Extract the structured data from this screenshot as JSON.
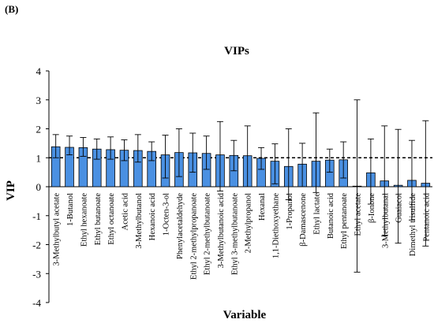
{
  "panel_label": "(B)",
  "chart_data": {
    "type": "bar",
    "title": "VIPs",
    "xlabel": "Variable",
    "ylabel": "VIP",
    "ylim": [
      -4,
      4
    ],
    "yticks": [
      -4,
      -3,
      -2,
      -1,
      0,
      1,
      2,
      3,
      4
    ],
    "threshold": 1,
    "bar_color": "#4a90e2",
    "categories": [
      "3-Methylbutyl acetate",
      "1-Butanol",
      "Ethyl hexanoate",
      "Ethyl butanoate",
      "Ethyl octanoate",
      "Acetic acid",
      "3-Methylbutanol",
      "Hexanoic acid",
      "1-Octen-3-ol",
      "Phenylacetaldehyde",
      "Ethyl 2-methylpropanoate",
      "Ethyl 2-methylbutanoate",
      "3-Methylbutanoic acid",
      "Ethyl 3-methylbutanoate",
      "2-Methylpropanol",
      "Hexanal",
      "1,1-Diethoxyethane",
      "1-Propanol",
      "β-Damascenone",
      "Ethyl lactate",
      "Butanoic acid",
      "Ethyl pentanoate",
      "Ethyl acetate",
      "β-Ionone",
      "3-Methylbutanal",
      "Guaiacol",
      "Dimethyl trisulfide",
      "Pentanoic acid"
    ],
    "values": [
      1.38,
      1.36,
      1.35,
      1.3,
      1.28,
      1.26,
      1.25,
      1.22,
      1.1,
      1.18,
      1.17,
      1.15,
      1.1,
      1.08,
      1.07,
      0.98,
      0.88,
      0.7,
      0.78,
      0.88,
      0.92,
      0.93,
      0.02,
      0.48,
      0.2,
      0.05,
      0.22,
      0.12
    ],
    "error_low": [
      1.0,
      1.1,
      1.05,
      0.95,
      0.95,
      0.9,
      0.85,
      0.9,
      0.3,
      0.35,
      0.5,
      0.6,
      -0.15,
      0.55,
      0.0,
      0.6,
      0.1,
      -0.45,
      0.0,
      -0.2,
      0.5,
      0.3,
      -2.95,
      -0.6,
      -1.7,
      -1.95,
      -1.15,
      -2.05
    ],
    "error_high": [
      1.8,
      1.75,
      1.7,
      1.65,
      1.72,
      1.62,
      1.8,
      1.55,
      1.78,
      2.0,
      1.85,
      1.75,
      2.25,
      1.6,
      2.1,
      1.35,
      1.48,
      2.0,
      1.5,
      2.55,
      1.3,
      1.55,
      3.0,
      1.65,
      2.1,
      1.98,
      1.6,
      2.28
    ]
  }
}
